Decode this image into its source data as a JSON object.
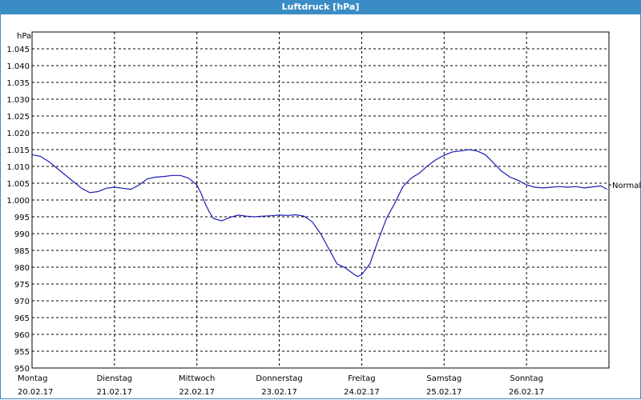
{
  "window": {
    "title": "Luftdruck [hPa]"
  },
  "chart_data": {
    "type": "line",
    "title": "Luftdruck [hPa]",
    "ylabel": "hPa",
    "ylim": [
      950,
      1050
    ],
    "y_ticks": [
      "950",
      "955",
      "960",
      "965",
      "970",
      "975",
      "980",
      "985",
      "990",
      "995",
      "1.000",
      "1.005",
      "1.010",
      "1.015",
      "1.020",
      "1.025",
      "1.030",
      "1.035",
      "1.040",
      "1.045"
    ],
    "y_tick_values": [
      950,
      955,
      960,
      965,
      970,
      975,
      980,
      985,
      990,
      995,
      1000,
      1005,
      1010,
      1015,
      1020,
      1025,
      1030,
      1035,
      1040,
      1045
    ],
    "x_range": [
      0,
      7
    ],
    "x_ticks": [
      {
        "day": "Montag",
        "date": "20.02.17",
        "x": 0
      },
      {
        "day": "Dienstag",
        "date": "21.02.17",
        "x": 1
      },
      {
        "day": "Mittwoch",
        "date": "22.02.17",
        "x": 2
      },
      {
        "day": "Donnerstag",
        "date": "23.02.17",
        "x": 3
      },
      {
        "day": "Freitag",
        "date": "24.02.17",
        "x": 4
      },
      {
        "day": "Samstag",
        "date": "25.02.17",
        "x": 5
      },
      {
        "day": "Sonntag",
        "date": "26.02.17",
        "x": 6
      }
    ],
    "reference_line": {
      "label": "Normal",
      "value": 1004.5
    },
    "grid": true,
    "series_color": "#1c1cb4",
    "series": [
      {
        "x": [
          0,
          0.1,
          0.2,
          0.3,
          0.4,
          0.5,
          0.6,
          0.7,
          0.8,
          0.9,
          1.0,
          1.1,
          1.2,
          1.3,
          1.4,
          1.5,
          1.6,
          1.7,
          1.8,
          1.9,
          2.0,
          2.05,
          2.1,
          2.15,
          2.2,
          2.3,
          2.4,
          2.5,
          2.6,
          2.7,
          2.8,
          2.9,
          3.0,
          3.1,
          3.2,
          3.3,
          3.4,
          3.5,
          3.6,
          3.7,
          3.8,
          3.9,
          3.95,
          4.0,
          4.1,
          4.2,
          4.3,
          4.4,
          4.5,
          4.6,
          4.7,
          4.8,
          4.9,
          5.0,
          5.1,
          5.2,
          5.3,
          5.4,
          5.5,
          5.6,
          5.7,
          5.8,
          5.9,
          6.0,
          6.1,
          6.2,
          6.3,
          6.4,
          6.5,
          6.6,
          6.7,
          6.8,
          6.9,
          6.98
        ],
        "values": [
          1013.5,
          1013,
          1011.5,
          1009.5,
          1007.5,
          1005.5,
          1003.5,
          1002.2,
          1002.5,
          1003.5,
          1003.8,
          1003.5,
          1003.2,
          1004.5,
          1006.3,
          1006.8,
          1007.0,
          1007.3,
          1007.3,
          1006.5,
          1004.5,
          1002,
          999,
          996.5,
          994.5,
          993.8,
          994.8,
          995.5,
          995.2,
          995.0,
          995.2,
          995.3,
          995.5,
          995.4,
          995.6,
          995.2,
          993.5,
          990,
          985.5,
          981,
          979.8,
          978,
          977.2,
          977.8,
          981,
          988,
          994.5,
          999,
          1004,
          1006.5,
          1008,
          1010.2,
          1012.0,
          1013.3,
          1014.3,
          1014.6,
          1015.0,
          1014.6,
          1013.5,
          1011.0,
          1008.5,
          1006.8,
          1005.8,
          1004.5,
          1003.8,
          1003.6,
          1003.8,
          1004.0,
          1003.8,
          1004.0,
          1003.6,
          1003.9,
          1004.2,
          1003.2
        ]
      }
    ]
  }
}
